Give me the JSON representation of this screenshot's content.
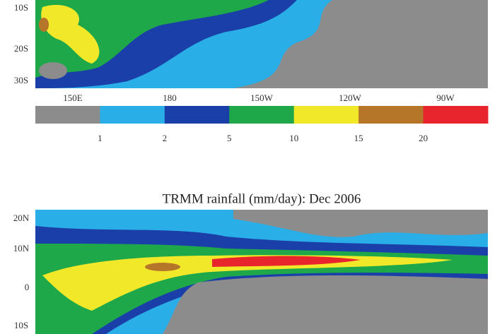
{
  "top_map": {
    "lat_labels": [
      "10S",
      "20S",
      "30S"
    ],
    "lon_labels": [
      "150E",
      "180",
      "150W",
      "120W",
      "90W"
    ]
  },
  "colorbar": {
    "colors": [
      "#8c8c8c",
      "#2aaee8",
      "#1b3fa8",
      "#1ea84a",
      "#f2e82a",
      "#b5762a",
      "#e8242c"
    ],
    "labels": [
      "1",
      "2",
      "5",
      "10",
      "15",
      "20"
    ]
  },
  "bottom_map": {
    "title": "TRMM rainfall (mm/day): Dec 2006",
    "lat_labels": [
      "20N",
      "10N",
      "0",
      "10S"
    ]
  }
}
